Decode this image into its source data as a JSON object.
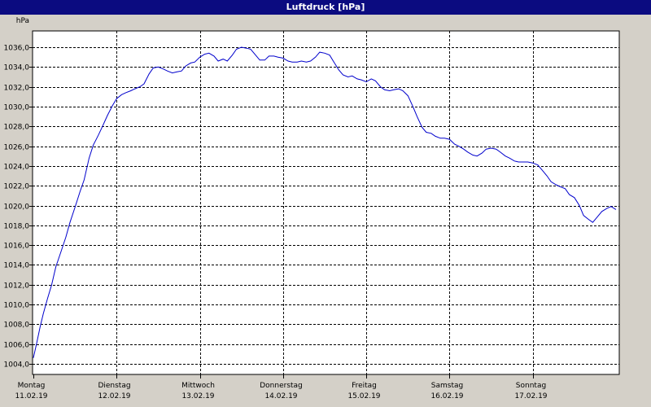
{
  "window": {
    "title": "Luftdruck [hPa]"
  },
  "chart_data": {
    "type": "line",
    "title": "Luftdruck [hPa]",
    "ylabel": "hPa",
    "xlabel": "",
    "ylim": [
      1003.0,
      1037.5
    ],
    "xlim": [
      0,
      7
    ],
    "grid": true,
    "line_color": "#0000cc",
    "y_ticks": [
      1004,
      1006,
      1008,
      1010,
      1012,
      1014,
      1016,
      1018,
      1020,
      1022,
      1024,
      1026,
      1028,
      1030,
      1032,
      1034,
      1036
    ],
    "y_tick_labels": [
      "1004,0",
      "1006,0",
      "1008,0",
      "1010,0",
      "1012,0",
      "1014,0",
      "1016,0",
      "1018,0",
      "1020,0",
      "1022,0",
      "1024,0",
      "1026,0",
      "1028,0",
      "1030,0",
      "1032,0",
      "1034,0",
      "1036,0"
    ],
    "x_ticks": [
      {
        "day": "Montag",
        "date": "11.02.19"
      },
      {
        "day": "Dienstag",
        "date": "12.02.19"
      },
      {
        "day": "Mittwoch",
        "date": "13.02.19"
      },
      {
        "day": "Donnerstag",
        "date": "14.02.19"
      },
      {
        "day": "Freitag",
        "date": "15.02.19"
      },
      {
        "day": "Samstag",
        "date": "16.02.19"
      },
      {
        "day": "Sonntag",
        "date": "17.02.19"
      }
    ],
    "series": [
      {
        "values": [
          [
            0.0,
            1004.6
          ],
          [
            0.04,
            1006.1
          ],
          [
            0.08,
            1007.7
          ],
          [
            0.12,
            1009.1
          ],
          [
            0.17,
            1010.6
          ],
          [
            0.22,
            1012.0
          ],
          [
            0.27,
            1013.8
          ],
          [
            0.33,
            1015.3
          ],
          [
            0.39,
            1016.8
          ],
          [
            0.44,
            1018.3
          ],
          [
            0.5,
            1019.8
          ],
          [
            0.56,
            1021.4
          ],
          [
            0.61,
            1022.6
          ],
          [
            0.67,
            1024.8
          ],
          [
            0.72,
            1026.1
          ],
          [
            0.78,
            1027.1
          ],
          [
            0.83,
            1028.0
          ],
          [
            0.89,
            1029.1
          ],
          [
            0.95,
            1030.1
          ],
          [
            1.0,
            1030.8
          ],
          [
            1.06,
            1031.2
          ],
          [
            1.11,
            1031.4
          ],
          [
            1.17,
            1031.6
          ],
          [
            1.22,
            1031.8
          ],
          [
            1.28,
            1032.0
          ],
          [
            1.33,
            1032.3
          ],
          [
            1.39,
            1033.3
          ],
          [
            1.44,
            1033.9
          ],
          [
            1.5,
            1034.0
          ],
          [
            1.56,
            1033.8
          ],
          [
            1.61,
            1033.6
          ],
          [
            1.67,
            1033.4
          ],
          [
            1.72,
            1033.5
          ],
          [
            1.78,
            1033.6
          ],
          [
            1.83,
            1034.1
          ],
          [
            1.89,
            1034.4
          ],
          [
            1.94,
            1034.5
          ],
          [
            2.0,
            1035.0
          ],
          [
            2.06,
            1035.3
          ],
          [
            2.11,
            1035.4
          ],
          [
            2.17,
            1035.1
          ],
          [
            2.22,
            1034.6
          ],
          [
            2.28,
            1034.8
          ],
          [
            2.33,
            1034.6
          ],
          [
            2.39,
            1035.2
          ],
          [
            2.44,
            1035.8
          ],
          [
            2.5,
            1036.0
          ],
          [
            2.56,
            1035.9
          ],
          [
            2.61,
            1035.8
          ],
          [
            2.67,
            1035.2
          ],
          [
            2.72,
            1034.7
          ],
          [
            2.78,
            1034.7
          ],
          [
            2.83,
            1035.1
          ],
          [
            2.89,
            1035.1
          ],
          [
            2.94,
            1035.0
          ],
          [
            3.0,
            1034.9
          ],
          [
            3.06,
            1034.6
          ],
          [
            3.11,
            1034.5
          ],
          [
            3.17,
            1034.5
          ],
          [
            3.22,
            1034.6
          ],
          [
            3.28,
            1034.5
          ],
          [
            3.33,
            1034.6
          ],
          [
            3.39,
            1035.0
          ],
          [
            3.44,
            1035.5
          ],
          [
            3.5,
            1035.4
          ],
          [
            3.56,
            1035.2
          ],
          [
            3.61,
            1034.5
          ],
          [
            3.67,
            1033.7
          ],
          [
            3.72,
            1033.2
          ],
          [
            3.78,
            1033.0
          ],
          [
            3.83,
            1033.1
          ],
          [
            3.89,
            1032.8
          ],
          [
            3.94,
            1032.7
          ],
          [
            4.0,
            1032.5
          ],
          [
            4.06,
            1032.8
          ],
          [
            4.11,
            1032.6
          ],
          [
            4.17,
            1032.0
          ],
          [
            4.22,
            1031.7
          ],
          [
            4.28,
            1031.6
          ],
          [
            4.33,
            1031.7
          ],
          [
            4.39,
            1031.8
          ],
          [
            4.44,
            1031.6
          ],
          [
            4.5,
            1031.1
          ],
          [
            4.56,
            1030.0
          ],
          [
            4.61,
            1029.0
          ],
          [
            4.67,
            1027.9
          ],
          [
            4.72,
            1027.4
          ],
          [
            4.78,
            1027.3
          ],
          [
            4.83,
            1027.0
          ],
          [
            4.89,
            1026.8
          ],
          [
            4.94,
            1026.8
          ],
          [
            5.0,
            1026.7
          ],
          [
            5.06,
            1026.2
          ],
          [
            5.11,
            1026.0
          ],
          [
            5.17,
            1025.7
          ],
          [
            5.22,
            1025.4
          ],
          [
            5.28,
            1025.1
          ],
          [
            5.33,
            1025.0
          ],
          [
            5.39,
            1025.3
          ],
          [
            5.44,
            1025.7
          ],
          [
            5.5,
            1025.8
          ],
          [
            5.56,
            1025.7
          ],
          [
            5.61,
            1025.4
          ],
          [
            5.67,
            1025.0
          ],
          [
            5.72,
            1024.8
          ],
          [
            5.78,
            1024.5
          ],
          [
            5.83,
            1024.4
          ],
          [
            5.89,
            1024.4
          ],
          [
            5.94,
            1024.4
          ],
          [
            6.0,
            1024.3
          ],
          [
            6.06,
            1024.1
          ],
          [
            6.11,
            1023.6
          ],
          [
            6.17,
            1023.0
          ],
          [
            6.22,
            1022.4
          ],
          [
            6.28,
            1022.1
          ],
          [
            6.33,
            1021.9
          ],
          [
            6.39,
            1021.7
          ],
          [
            6.44,
            1021.1
          ],
          [
            6.5,
            1020.8
          ],
          [
            6.56,
            1020.0
          ],
          [
            6.61,
            1019.0
          ],
          [
            6.67,
            1018.6
          ],
          [
            6.72,
            1018.3
          ],
          [
            6.78,
            1018.9
          ],
          [
            6.83,
            1019.4
          ],
          [
            6.89,
            1019.7
          ],
          [
            6.94,
            1019.9
          ],
          [
            7.0,
            1019.6
          ]
        ]
      }
    ]
  }
}
